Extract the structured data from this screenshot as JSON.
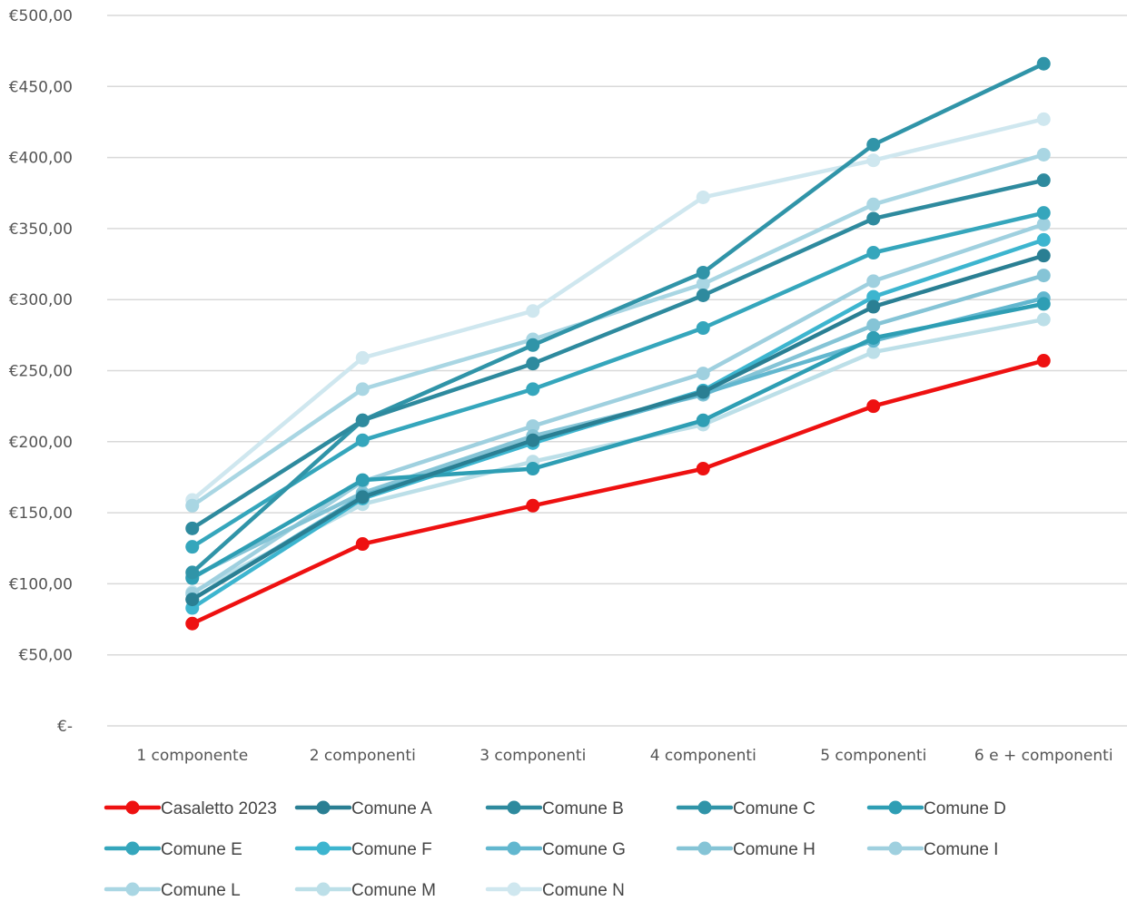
{
  "chart_data": {
    "type": "line",
    "categories": [
      "1 componente",
      "2 componenti",
      "3 componenti",
      "4 componenti",
      "5 componenti",
      "6 e +  componenti"
    ],
    "yticks": [
      "€-",
      "€50,00",
      "€100,00",
      "€150,00",
      "€200,00",
      "€250,00",
      "€300,00",
      "€350,00",
      "€400,00",
      "€450,00",
      "€500,00"
    ],
    "ylim": [
      0,
      500
    ],
    "grid": true,
    "legend_position": "bottom",
    "series": [
      {
        "name": "Casaletto 2023",
        "color": "#ee1111",
        "values": [
          72,
          128,
          155,
          181,
          225,
          257
        ]
      },
      {
        "name": "Comune A",
        "color": "#2a7f93",
        "values": [
          89,
          161,
          201,
          235,
          295,
          331
        ]
      },
      {
        "name": "Comune B",
        "color": "#2e8a9e",
        "values": [
          139,
          215,
          255,
          303,
          357,
          384
        ]
      },
      {
        "name": "Comune C",
        "color": "#3094a8",
        "values": [
          108,
          215,
          268,
          319,
          409,
          466
        ]
      },
      {
        "name": "Comune D",
        "color": "#2e9eb4",
        "values": [
          104,
          173,
          181,
          215,
          273,
          297
        ]
      },
      {
        "name": "Comune E",
        "color": "#35a6bc",
        "values": [
          126,
          201,
          237,
          280,
          333,
          361
        ]
      },
      {
        "name": "Comune F",
        "color": "#3db5cf",
        "values": [
          83,
          160,
          199,
          236,
          302,
          342
        ]
      },
      {
        "name": "Comune G",
        "color": "#62b7cf",
        "values": [
          89,
          162,
          200,
          234,
          271,
          301
        ]
      },
      {
        "name": "Comune H",
        "color": "#85c4d6",
        "values": [
          105,
          164,
          204,
          233,
          282,
          317
        ]
      },
      {
        "name": "Comune I",
        "color": "#9fd0df",
        "values": [
          93,
          172,
          211,
          248,
          313,
          353
        ]
      },
      {
        "name": "Comune L",
        "color": "#a9d6e3",
        "values": [
          155,
          237,
          272,
          311,
          367,
          402
        ]
      },
      {
        "name": "Comune M",
        "color": "#bcdfe8",
        "values": [
          94,
          156,
          186,
          212,
          263,
          286
        ]
      },
      {
        "name": "Comune N",
        "color": "#cfe7ef",
        "values": [
          159,
          259,
          292,
          372,
          398,
          427
        ]
      }
    ]
  }
}
